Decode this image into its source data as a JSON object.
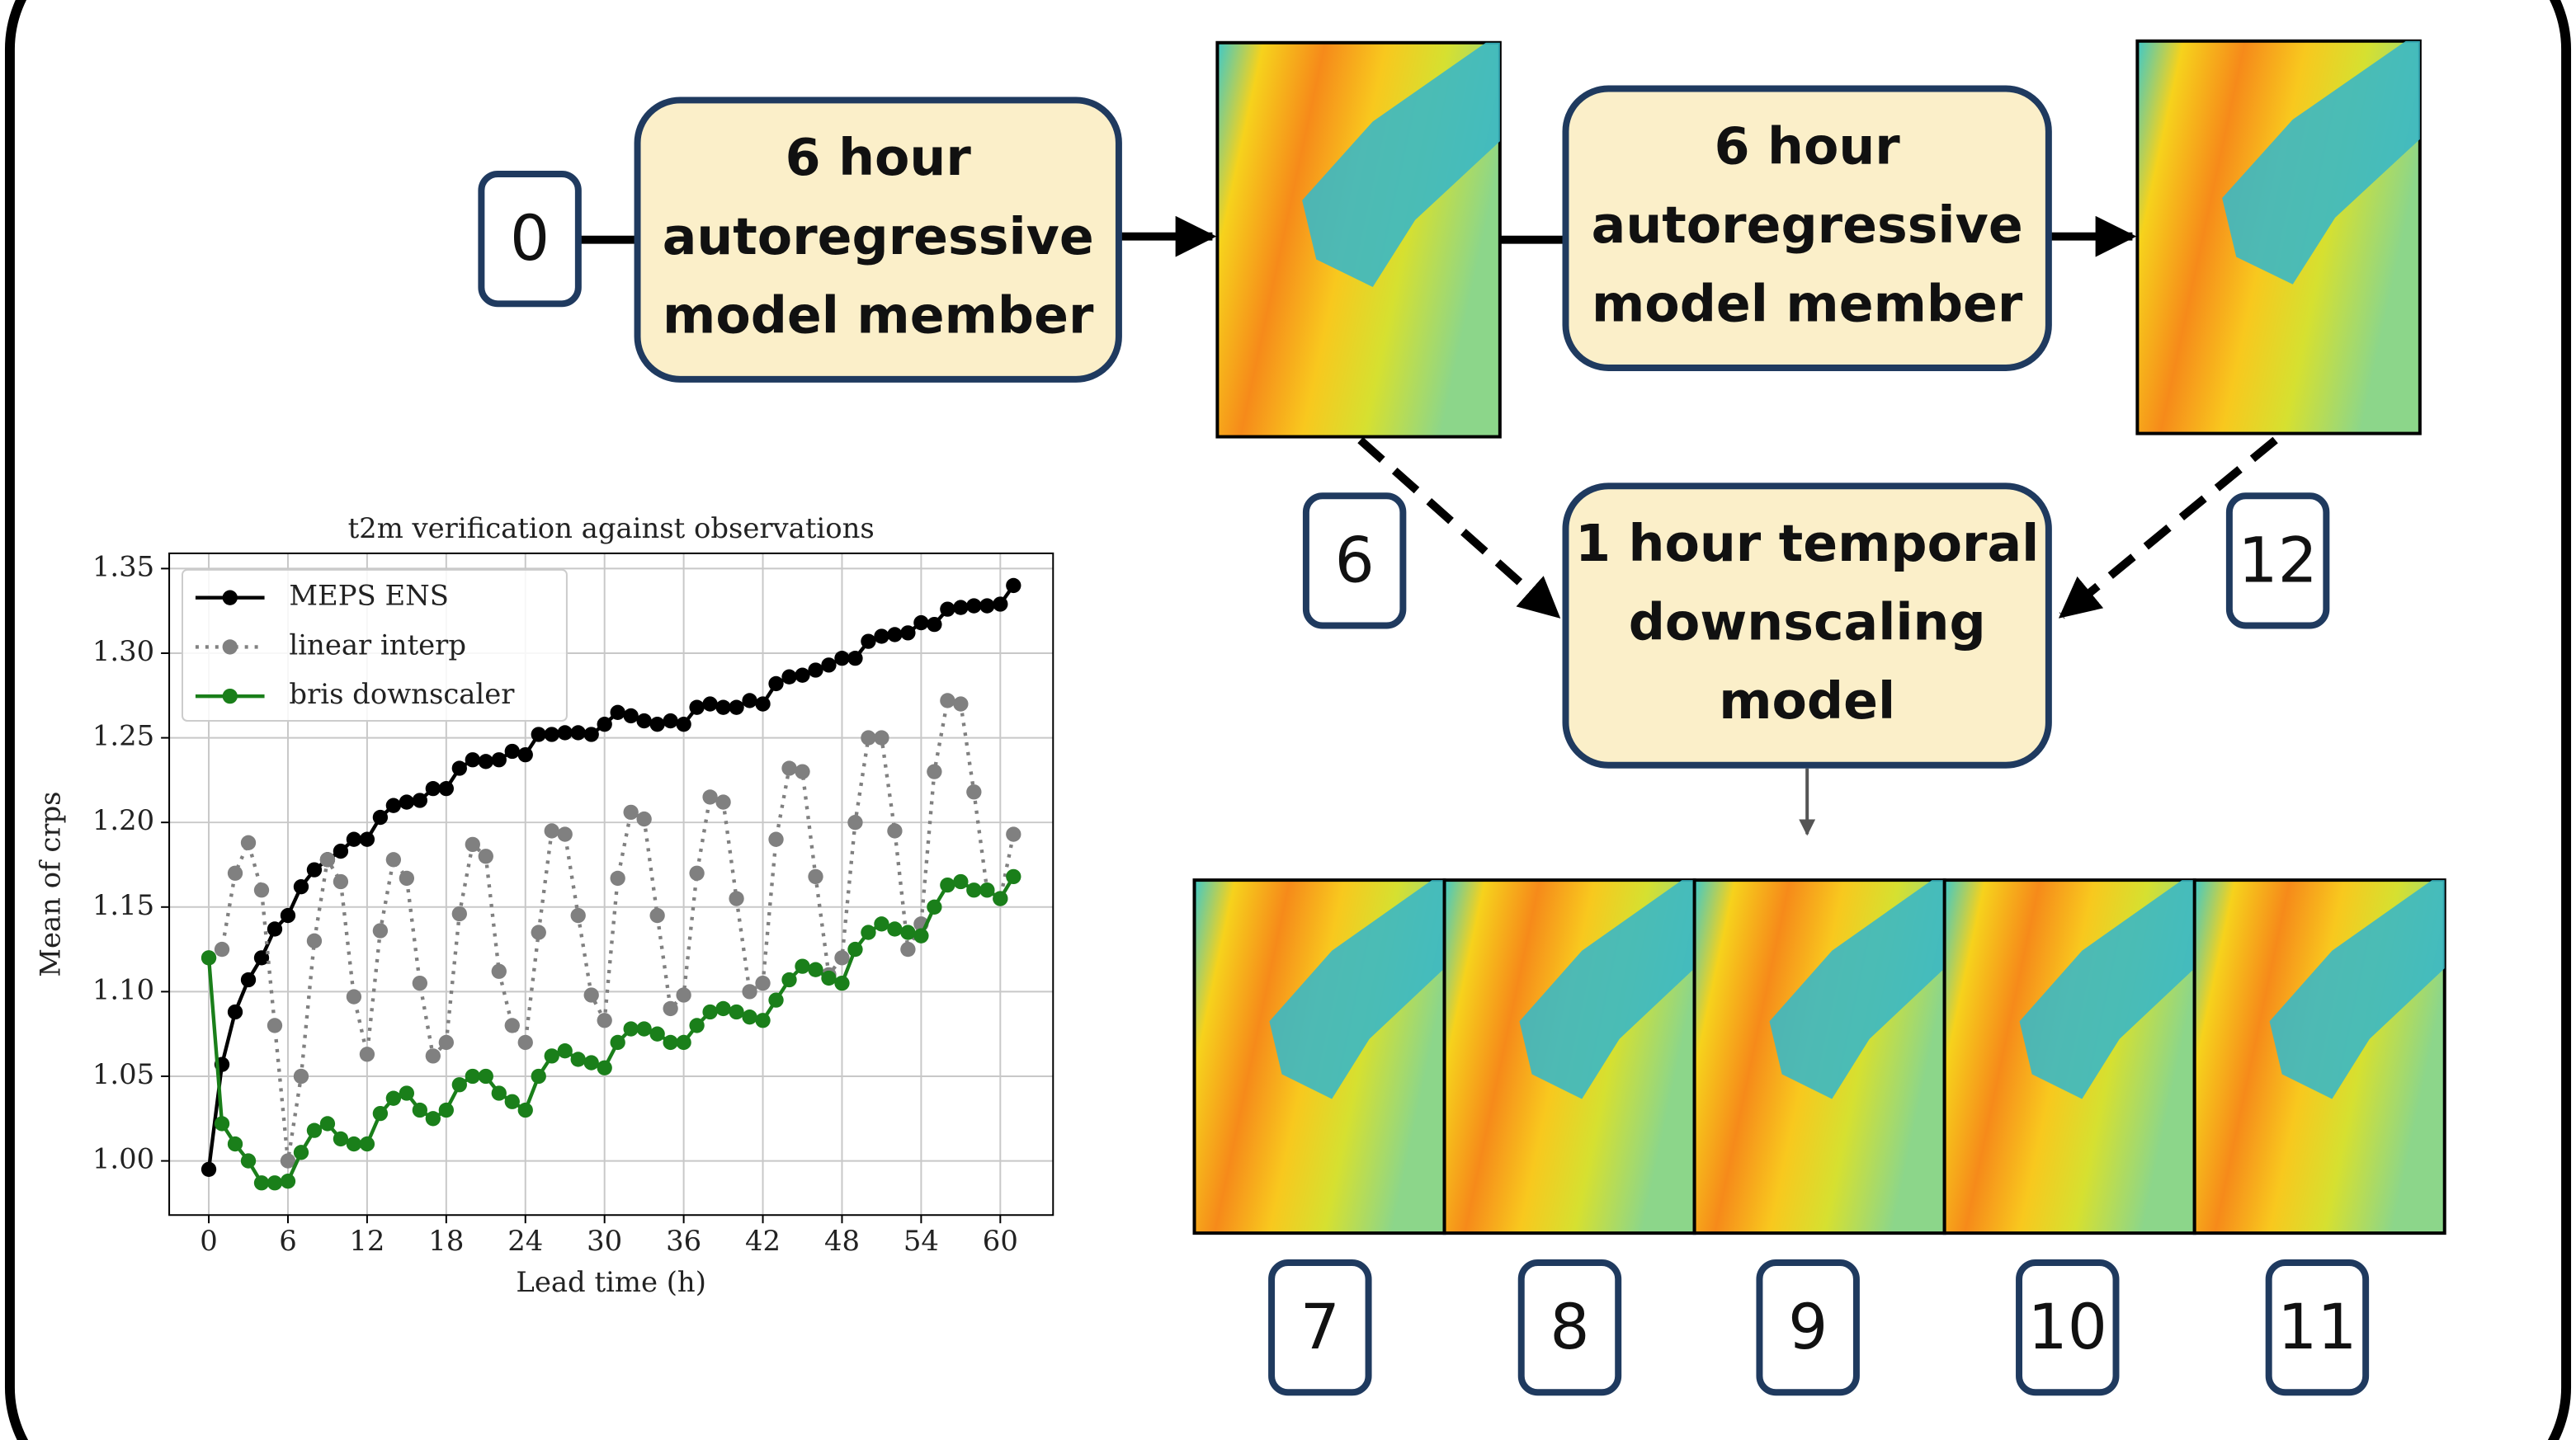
{
  "boxes": [
    {
      "lines": [
        "6 hour",
        "autoregressive",
        "model member"
      ]
    },
    {
      "lines": [
        "6 hour",
        "autoregressive",
        "model member"
      ]
    },
    {
      "lines": [
        "1 hour temporal",
        "downscaling",
        "model"
      ]
    }
  ],
  "steps": [
    "0",
    "6",
    "12",
    "7",
    "8",
    "9",
    "10",
    "11"
  ],
  "chart_data": {
    "type": "line",
    "title": "t2m verification against observations",
    "x_label": "Lead time (h)",
    "y_label": "Mean of crps",
    "x": [
      0,
      1,
      2,
      3,
      4,
      5,
      6,
      7,
      8,
      9,
      10,
      11,
      12,
      13,
      14,
      15,
      16,
      17,
      18,
      19,
      20,
      21,
      22,
      23,
      24,
      25,
      26,
      27,
      28,
      29,
      30,
      31,
      32,
      33,
      34,
      35,
      36,
      37,
      38,
      39,
      40,
      41,
      42,
      43,
      44,
      45,
      46,
      47,
      48,
      49,
      50,
      51,
      52,
      53,
      54,
      55,
      56,
      57,
      58,
      59,
      60,
      61
    ],
    "series": [
      {
        "name": "MEPS ENS",
        "color": "#000000",
        "dash": "solid",
        "values": [
          0.995,
          1.057,
          1.088,
          1.107,
          1.12,
          1.137,
          1.145,
          1.162,
          1.172,
          1.178,
          1.183,
          1.19,
          1.19,
          1.203,
          1.21,
          1.212,
          1.213,
          1.22,
          1.22,
          1.232,
          1.237,
          1.236,
          1.237,
          1.242,
          1.24,
          1.252,
          1.252,
          1.253,
          1.253,
          1.252,
          1.258,
          1.265,
          1.263,
          1.26,
          1.258,
          1.26,
          1.258,
          1.268,
          1.27,
          1.268,
          1.268,
          1.272,
          1.27,
          1.282,
          1.286,
          1.287,
          1.29,
          1.293,
          1.297,
          1.297,
          1.307,
          1.31,
          1.311,
          1.312,
          1.318,
          1.317,
          1.326,
          1.327,
          1.328,
          1.328,
          1.329,
          1.34
        ]
      },
      {
        "name": "linear interp",
        "color": "#808080",
        "dash": "dotted",
        "values": [
          1.12,
          1.125,
          1.17,
          1.188,
          1.16,
          1.08,
          1.0,
          1.05,
          1.13,
          1.178,
          1.165,
          1.097,
          1.063,
          1.136,
          1.178,
          1.167,
          1.105,
          1.062,
          1.07,
          1.146,
          1.187,
          1.18,
          1.112,
          1.08,
          1.07,
          1.135,
          1.195,
          1.193,
          1.145,
          1.098,
          1.083,
          1.167,
          1.206,
          1.202,
          1.145,
          1.09,
          1.098,
          1.17,
          1.215,
          1.212,
          1.155,
          1.1,
          1.105,
          1.19,
          1.232,
          1.23,
          1.168,
          1.11,
          1.12,
          1.2,
          1.25,
          1.25,
          1.195,
          1.125,
          1.14,
          1.23,
          1.272,
          1.27,
          1.218,
          1.16,
          1.155,
          1.193
        ]
      },
      {
        "name": "bris downscaler",
        "color": "#1a7f1a",
        "dash": "solid",
        "values": [
          1.12,
          1.022,
          1.01,
          1.0,
          0.987,
          0.987,
          0.988,
          1.005,
          1.018,
          1.022,
          1.013,
          1.01,
          1.01,
          1.028,
          1.037,
          1.04,
          1.03,
          1.025,
          1.03,
          1.045,
          1.05,
          1.05,
          1.04,
          1.035,
          1.03,
          1.05,
          1.062,
          1.065,
          1.06,
          1.058,
          1.055,
          1.07,
          1.078,
          1.078,
          1.075,
          1.07,
          1.07,
          1.08,
          1.088,
          1.09,
          1.088,
          1.085,
          1.083,
          1.095,
          1.107,
          1.115,
          1.113,
          1.108,
          1.105,
          1.125,
          1.135,
          1.14,
          1.137,
          1.135,
          1.133,
          1.15,
          1.163,
          1.165,
          1.16,
          1.16,
          1.155,
          1.168
        ]
      }
    ],
    "xlim": [
      -3,
      64
    ],
    "ylim": [
      0.968,
      1.359
    ],
    "xticks": [
      0,
      6,
      12,
      18,
      24,
      30,
      36,
      42,
      48,
      54,
      60
    ],
    "yticks": [
      {
        "value": 1,
        "label": "1.00"
      },
      1.05,
      {
        "value": 1.1,
        "label": "1.10"
      },
      1.15,
      {
        "value": 1.2,
        "label": "1.20"
      },
      1.25,
      {
        "value": 1.3,
        "label": "1.30"
      },
      1.35
    ],
    "grid": true,
    "legend": "upper left"
  }
}
